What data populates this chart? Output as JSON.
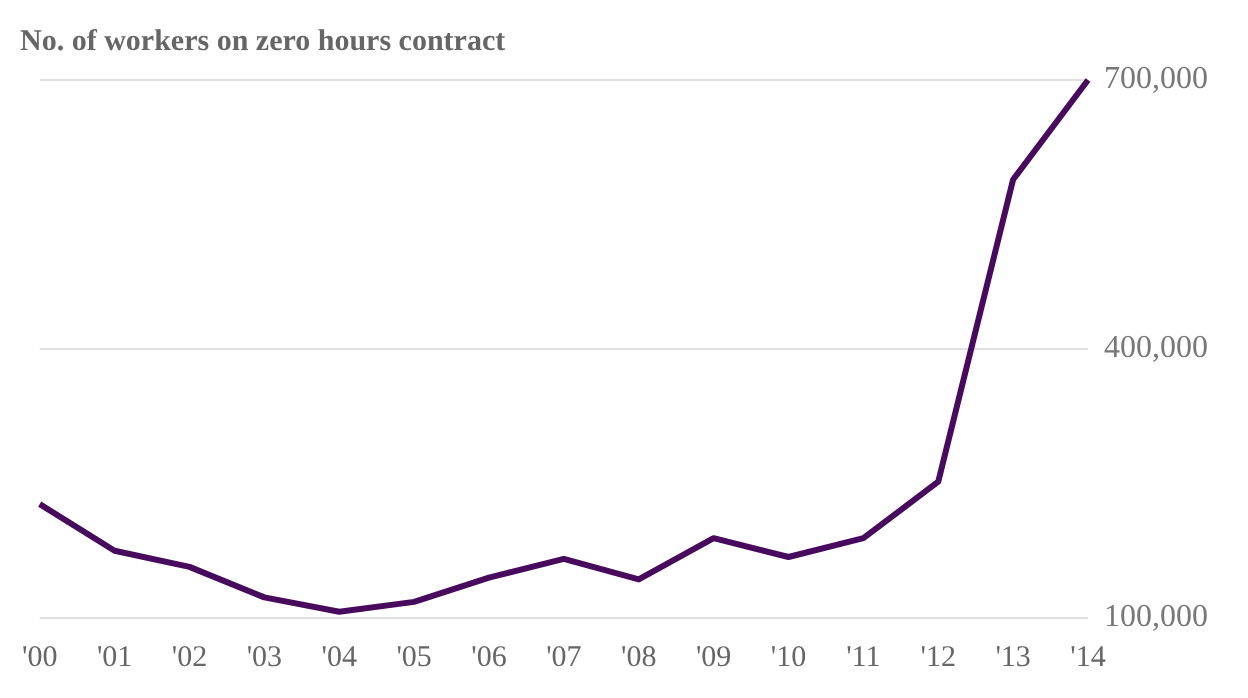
{
  "chart_data": {
    "type": "line",
    "title": "No. of workers on zero hours contract",
    "categories": [
      "'00",
      "'01",
      "'02",
      "'03",
      "'04",
      "'05",
      "'06",
      "'07",
      "'08",
      "'09",
      "'10",
      "'11",
      "'12",
      "'13",
      "'14"
    ],
    "series": [
      {
        "color": "#470a5c",
        "values": [
          227000,
          175000,
          157000,
          123000,
          107000,
          118000,
          145000,
          166000,
          143000,
          189000,
          168000,
          189000,
          252000,
          589000,
          700000
        ]
      }
    ],
    "ylim": [
      100000,
      700000
    ],
    "yticks": [
      {
        "value": 100000,
        "label": "100,000"
      },
      {
        "value": 400000,
        "label": "400,000"
      },
      {
        "value": 700000,
        "label": "700,000"
      }
    ],
    "grid": "y",
    "legend": false,
    "marker": "none",
    "line_style": "solid"
  }
}
